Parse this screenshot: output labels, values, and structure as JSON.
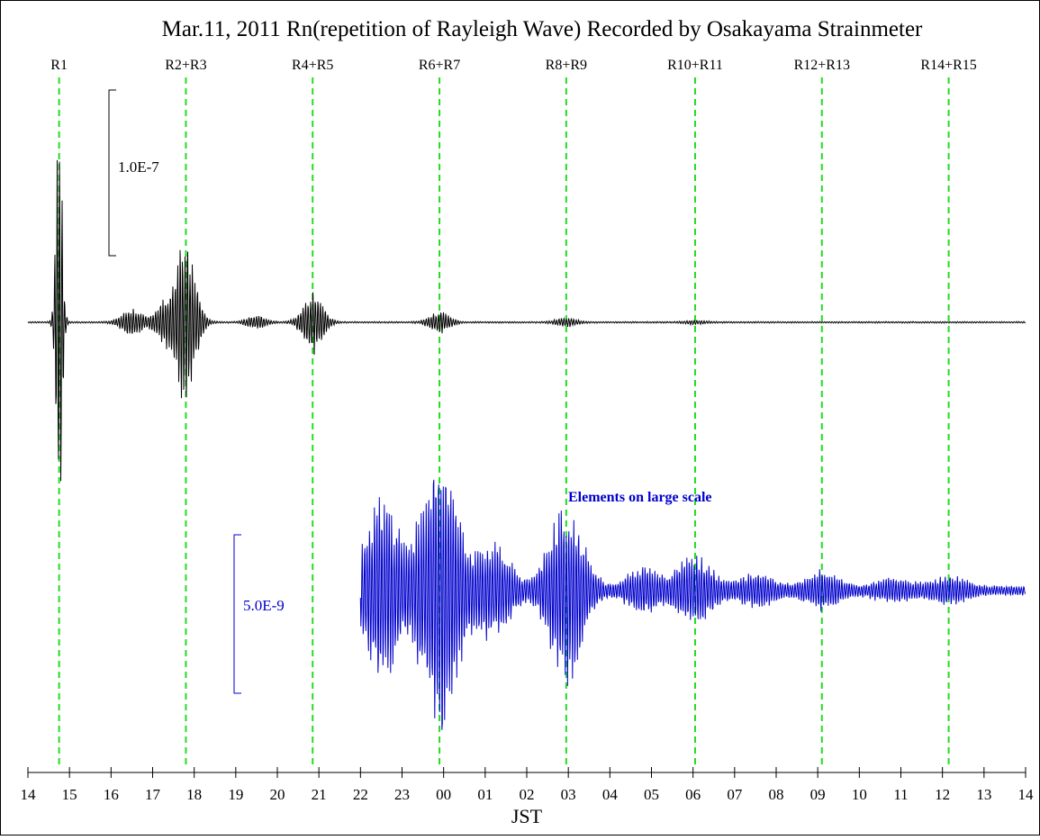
{
  "chart_data": {
    "type": "line",
    "title": "Mar.11, 2011  Rn(repetition of Rayleigh Wave) Recorded by Osakayama Strainmeter",
    "xlabel": "JST",
    "x_ticks": [
      "14",
      "15",
      "16",
      "17",
      "18",
      "19",
      "20",
      "21",
      "22",
      "23",
      "00",
      "01",
      "02",
      "03",
      "04",
      "05",
      "06",
      "07",
      "08",
      "09",
      "10",
      "11",
      "12",
      "13",
      "14"
    ],
    "x_range_hours": [
      14,
      38
    ],
    "markers": [
      {
        "label": "R1",
        "time": 14.75
      },
      {
        "label": "R2+R3",
        "time": 17.8
      },
      {
        "label": "R4+R5",
        "time": 20.85
      },
      {
        "label": "R6+R7",
        "time": 23.9
      },
      {
        "label": "R8+R9",
        "time": 26.95
      },
      {
        "label": "R10+R11",
        "time": 30.05
      },
      {
        "label": "R12+R13",
        "time": 33.1
      },
      {
        "label": "R14+R15",
        "time": 36.15
      }
    ],
    "marker_color": "#22dd22",
    "series": [
      {
        "color": "#000000",
        "t_start": 14.0,
        "t_end": 38.0,
        "scale_bar_label": "1.0E-7",
        "wave_packets": [
          {
            "center": 14.75,
            "amplitude": 1.0
          },
          {
            "center": 16.5,
            "amplitude": 0.07
          },
          {
            "center": 17.3,
            "amplitude": 0.09
          },
          {
            "center": 17.8,
            "amplitude": 0.42
          },
          {
            "center": 19.5,
            "amplitude": 0.03
          },
          {
            "center": 20.85,
            "amplitude": 0.15
          },
          {
            "center": 23.9,
            "amplitude": 0.05
          },
          {
            "center": 26.95,
            "amplitude": 0.02
          },
          {
            "center": 30.05,
            "amplitude": 0.008
          }
        ]
      },
      {
        "color": "#0000cc",
        "t_start": 22.0,
        "t_end": 38.0,
        "annotation": "Elements on large scale",
        "scale_bar_label": "5.0E-9",
        "wave_packets": [
          {
            "center": 22.5,
            "amplitude": 0.6
          },
          {
            "center": 23.9,
            "amplitude": 1.0
          },
          {
            "center": 25.2,
            "amplitude": 0.3
          },
          {
            "center": 26.95,
            "amplitude": 0.55
          },
          {
            "center": 28.8,
            "amplitude": 0.12
          },
          {
            "center": 30.05,
            "amplitude": 0.2
          },
          {
            "center": 31.5,
            "amplitude": 0.09
          },
          {
            "center": 33.1,
            "amplitude": 0.1
          },
          {
            "center": 34.8,
            "amplitude": 0.06
          },
          {
            "center": 36.15,
            "amplitude": 0.07
          }
        ]
      }
    ]
  }
}
